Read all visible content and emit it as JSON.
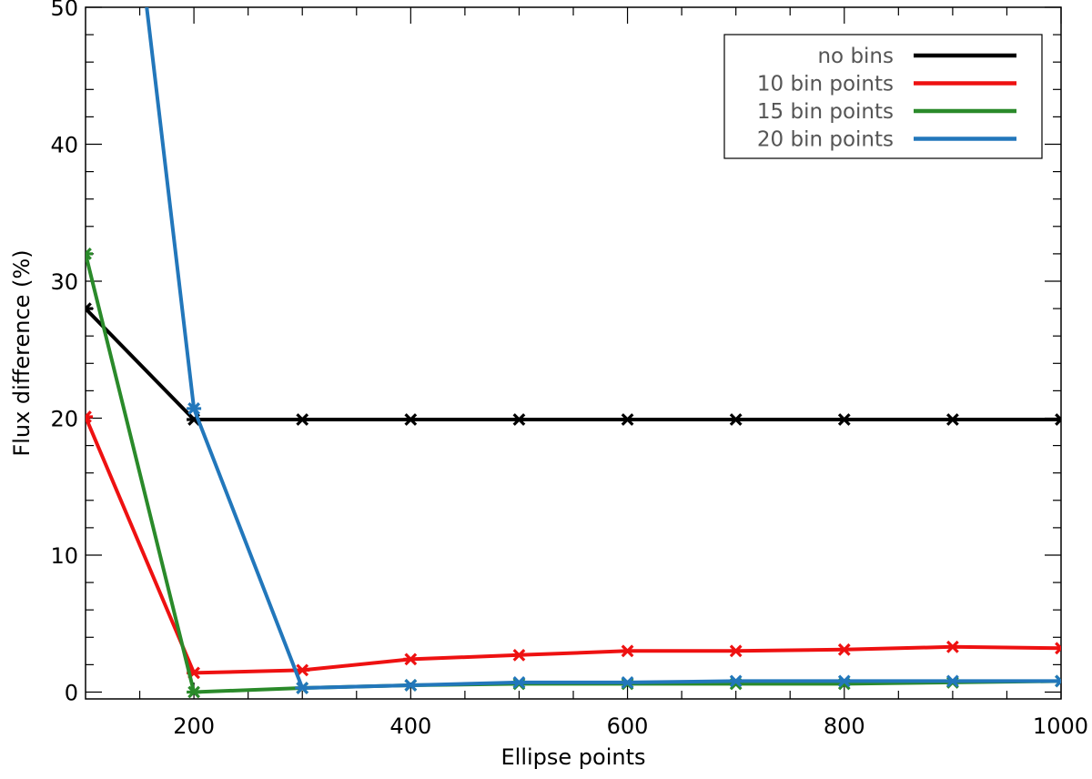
{
  "chart_data": {
    "type": "line",
    "xlabel": "Ellipse points",
    "ylabel": "Flux difference (%)",
    "xlim": [
      100,
      1000
    ],
    "ylim": [
      -0.5,
      50
    ],
    "xticks": [
      200,
      400,
      600,
      800,
      1000
    ],
    "yticks": [
      0,
      10,
      20,
      30,
      40,
      50
    ],
    "x": [
      100,
      200,
      300,
      400,
      500,
      600,
      700,
      800,
      900,
      1000
    ],
    "legend_position": "top-right",
    "grid": false,
    "series": [
      {
        "name": "no bins",
        "color": "#000000",
        "values": [
          28.0,
          19.9,
          19.9,
          19.9,
          19.9,
          19.9,
          19.9,
          19.9,
          19.9,
          19.9
        ]
      },
      {
        "name": "10 bin points",
        "color": "#ee1111",
        "values": [
          20.1,
          1.4,
          1.6,
          2.4,
          2.7,
          3.0,
          3.0,
          3.1,
          3.3,
          3.2
        ]
      },
      {
        "name": "15 bin points",
        "color": "#2a8a2a",
        "values": [
          32.0,
          0.0,
          0.3,
          0.5,
          0.6,
          0.6,
          0.6,
          0.6,
          0.7,
          0.8
        ]
      },
      {
        "name": "20 bin points",
        "color": "#2277bb",
        "values": [
          88.0,
          20.7,
          0.3,
          0.5,
          0.7,
          0.7,
          0.8,
          0.8,
          0.8,
          0.8
        ]
      }
    ]
  }
}
